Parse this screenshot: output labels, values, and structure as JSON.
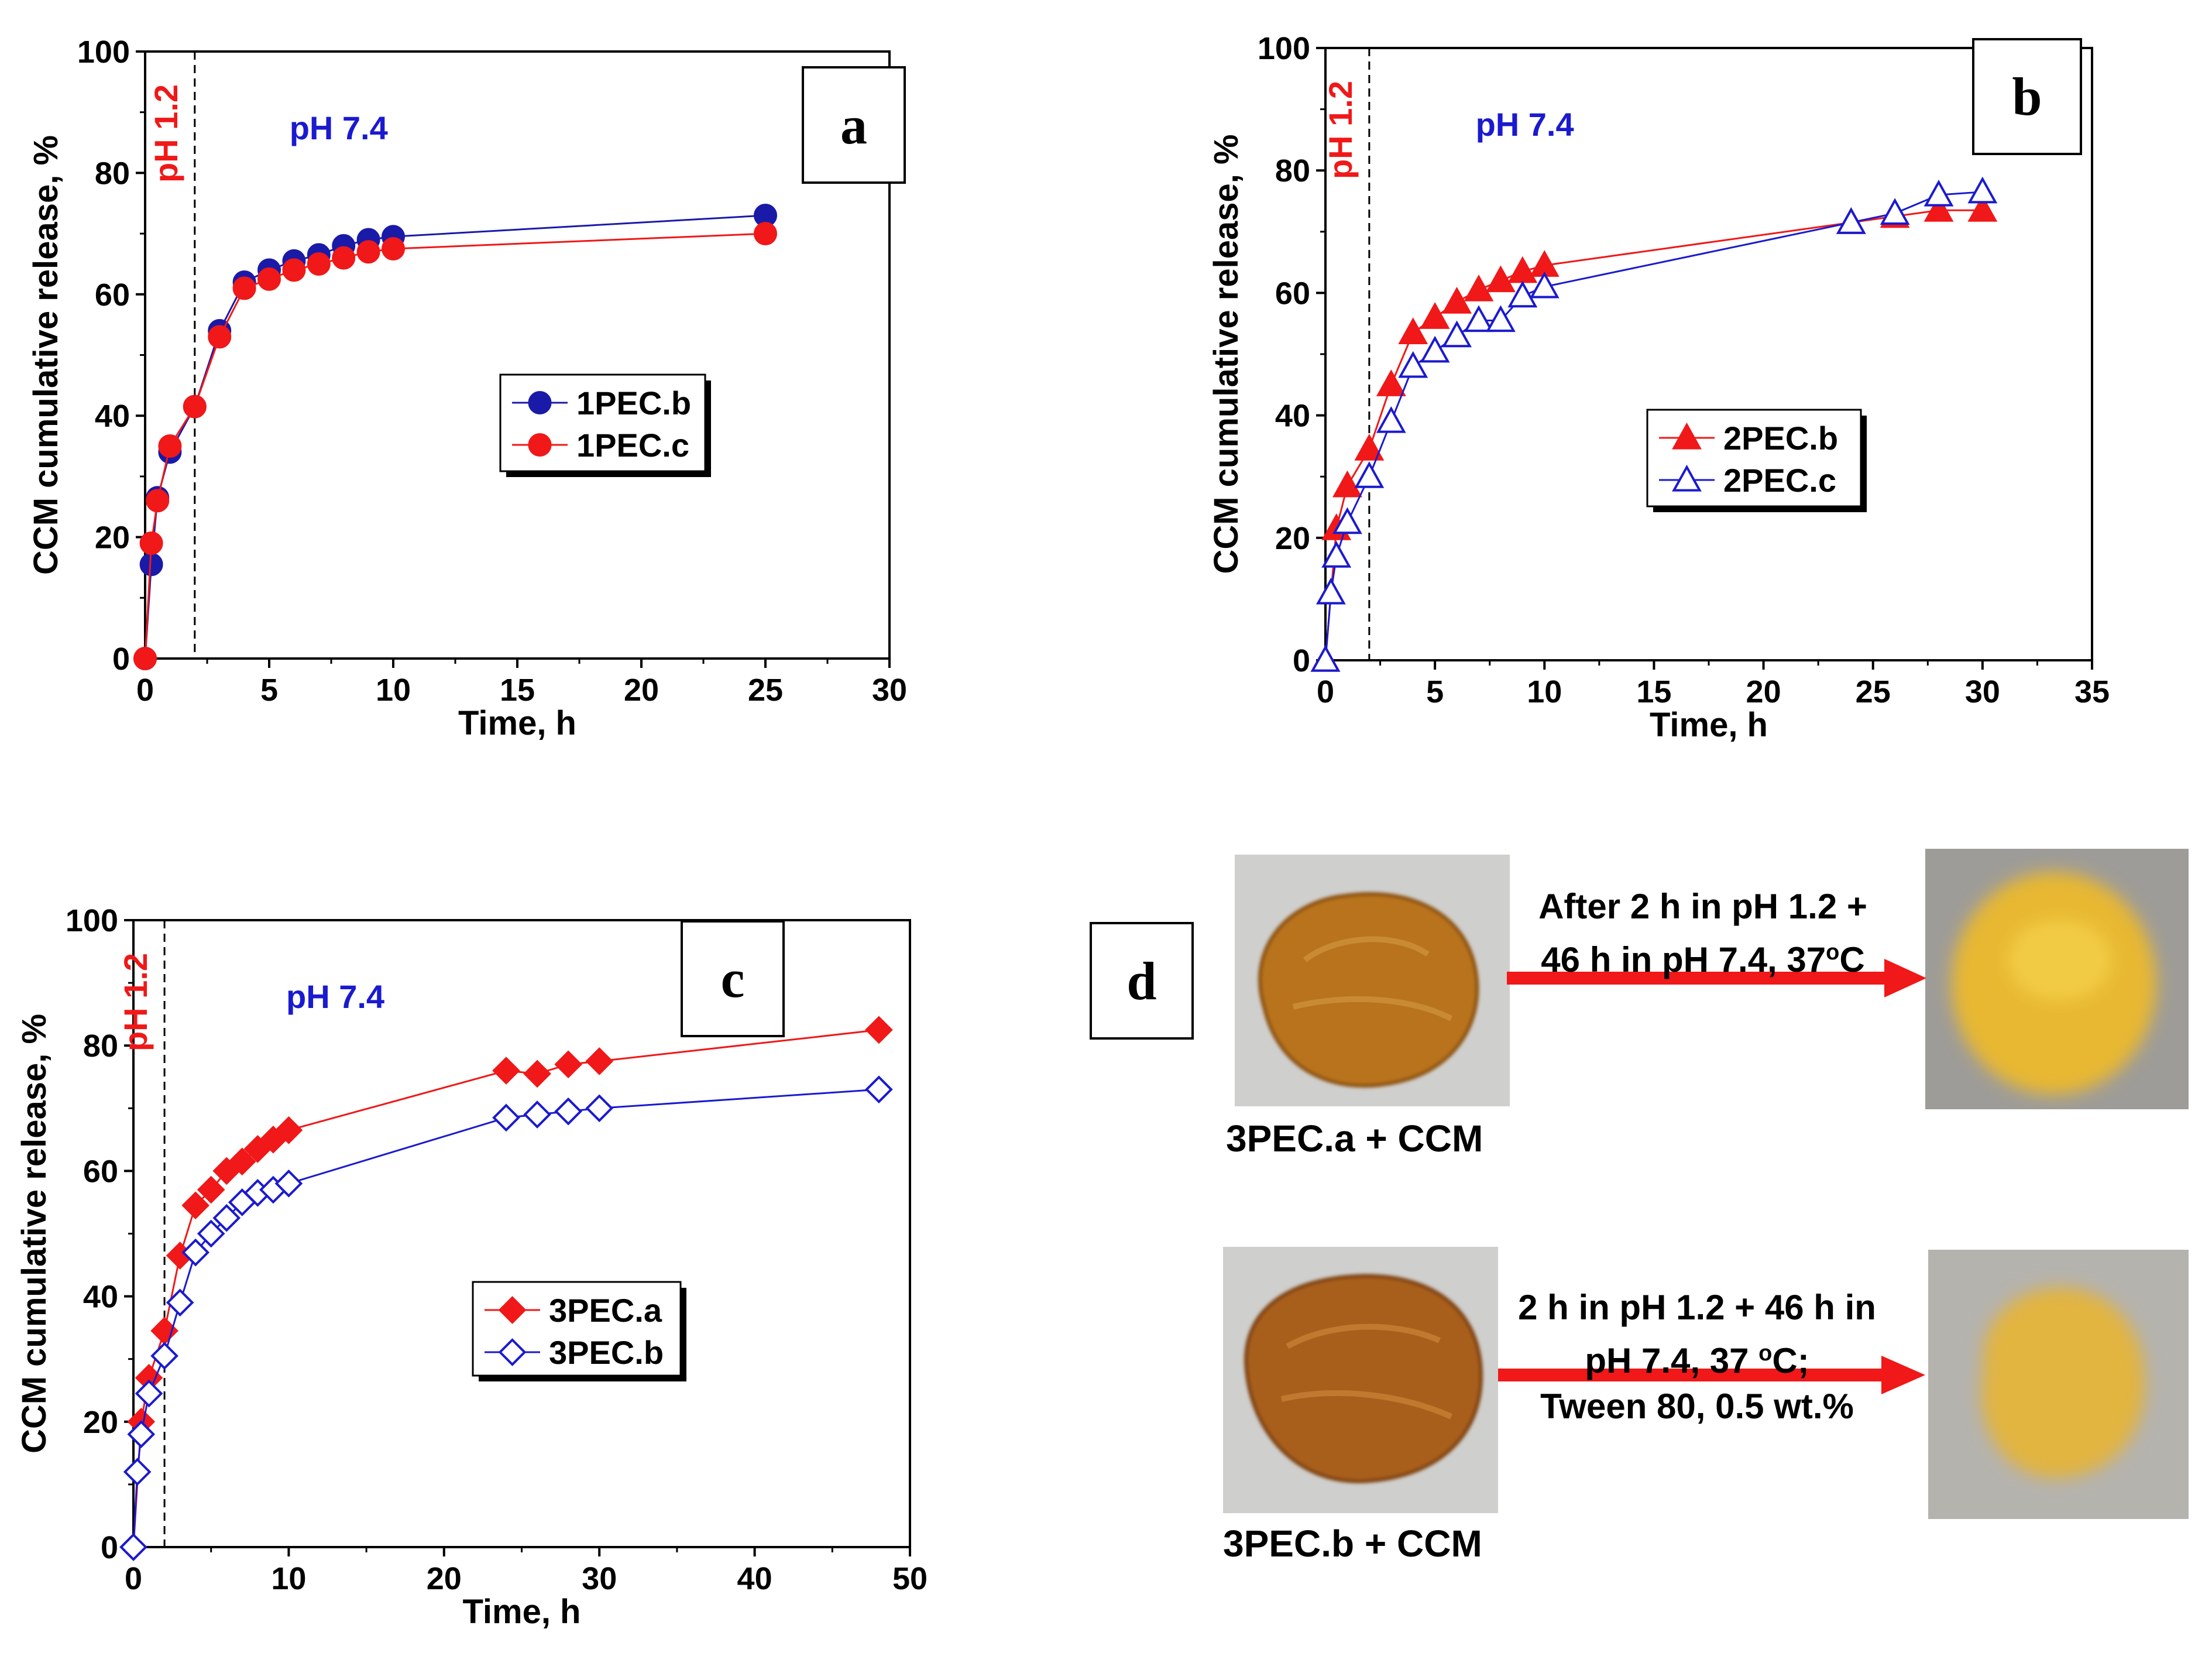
{
  "chart_data": [
    {
      "panel": "a",
      "type": "line",
      "xlabel": "Time, h",
      "ylabel": "CCM cumulative release, %",
      "xlim": [
        0,
        30
      ],
      "ylim": [
        0,
        100
      ],
      "xticks": [
        0,
        5,
        10,
        15,
        20,
        25,
        30
      ],
      "yticks": [
        0,
        20,
        40,
        60,
        80,
        100
      ],
      "xtick_labels": [
        "0",
        "5",
        "10",
        "15",
        "20",
        "25",
        "30"
      ],
      "ytick_labels": [
        "0",
        "20",
        "40",
        "60",
        "80",
        "100"
      ],
      "ph_acid_label": "pH 1.2",
      "ph_neutral_label": "pH 7.4",
      "ph_switch_x": 2,
      "legend_position": "center-right",
      "series": [
        {
          "name": "1PEC.b",
          "color": "#1a1aa8",
          "marker": "circle",
          "filled": true,
          "x": [
            0,
            0.25,
            0.5,
            1,
            2,
            3,
            4,
            5,
            6,
            7,
            8,
            9,
            10,
            25
          ],
          "y": [
            0,
            15.5,
            26.5,
            34,
            41.5,
            54,
            62,
            64,
            65.5,
            66.5,
            68,
            69,
            69.5,
            73
          ]
        },
        {
          "name": "1PEC.c",
          "color": "#f01818",
          "marker": "circle",
          "filled": true,
          "x": [
            0,
            0.25,
            0.5,
            1,
            2,
            3,
            4,
            5,
            6,
            7,
            8,
            9,
            10,
            25
          ],
          "y": [
            0,
            19,
            26,
            35,
            41.5,
            53,
            61,
            62.5,
            64,
            65,
            66,
            67,
            67.5,
            70
          ]
        }
      ]
    },
    {
      "panel": "b",
      "type": "line",
      "xlabel": "Time, h",
      "ylabel": "CCM cumulative release, %",
      "xlim": [
        0,
        35
      ],
      "ylim": [
        0,
        100
      ],
      "xticks": [
        0,
        5,
        10,
        15,
        20,
        25,
        30,
        35
      ],
      "yticks": [
        0,
        20,
        40,
        60,
        80,
        100
      ],
      "xtick_labels": [
        "0",
        "5",
        "10",
        "15",
        "20",
        "25",
        "30",
        "35"
      ],
      "ytick_labels": [
        "0",
        "20",
        "40",
        "60",
        "80",
        "100"
      ],
      "ph_acid_label": "pH 1.2",
      "ph_neutral_label": "pH 7.4",
      "ph_switch_x": 2,
      "legend_position": "center-right",
      "series": [
        {
          "name": "2PEC.b",
          "color": "#f01818",
          "marker": "triangle",
          "filled": true,
          "x": [
            0,
            0.5,
            1,
            2,
            3,
            4,
            5,
            6,
            7,
            8,
            9,
            10,
            24,
            26,
            28,
            30
          ],
          "y": [
            0,
            21.5,
            28.5,
            34.5,
            45,
            53.5,
            56,
            58.5,
            60.5,
            62,
            63.5,
            64.5,
            71.5,
            72.5,
            73.5,
            73.5
          ]
        },
        {
          "name": "2PEC.c",
          "color": "#1a1ad0",
          "marker": "triangle",
          "filled": false,
          "x": [
            0,
            0.25,
            0.5,
            1,
            2,
            3,
            4,
            5,
            6,
            7,
            8,
            9,
            10,
            24,
            26,
            28,
            30
          ],
          "y": [
            0,
            11,
            17,
            22.5,
            30,
            39,
            48,
            50.5,
            53,
            55.5,
            55.5,
            59.5,
            61,
            71.5,
            73,
            76,
            76.5
          ]
        }
      ]
    },
    {
      "panel": "c",
      "type": "line",
      "xlabel": "Time, h",
      "ylabel": "CCM cumulative release, %",
      "xlim": [
        0,
        50
      ],
      "ylim": [
        0,
        100
      ],
      "xticks": [
        0,
        10,
        20,
        30,
        40,
        50
      ],
      "yticks": [
        0,
        20,
        40,
        60,
        80,
        100
      ],
      "xtick_labels": [
        "0",
        "10",
        "20",
        "30",
        "40",
        "50"
      ],
      "ytick_labels": [
        "0",
        "20",
        "40",
        "60",
        "80",
        "100"
      ],
      "ph_acid_label": "pH 1.2",
      "ph_neutral_label": "pH 7.4",
      "ph_switch_x": 2,
      "legend_position": "center-right",
      "series": [
        {
          "name": "3PEC.a",
          "color": "#f01818",
          "marker": "diamond",
          "filled": true,
          "x": [
            0,
            0.5,
            1,
            2,
            3,
            4,
            5,
            6,
            7,
            8,
            9,
            10,
            24,
            26,
            28,
            30,
            48
          ],
          "y": [
            0,
            20,
            27,
            34.5,
            46.5,
            54.5,
            57,
            60,
            61.5,
            63.5,
            65,
            66.5,
            76,
            75.5,
            77,
            77.5,
            82.5
          ]
        },
        {
          "name": "3PEC.b",
          "color": "#1a1ad0",
          "marker": "diamond",
          "filled": false,
          "x": [
            0,
            0.25,
            0.5,
            1,
            2,
            3,
            4,
            5,
            6,
            7,
            8,
            9,
            10,
            24,
            26,
            28,
            30,
            48
          ],
          "y": [
            0,
            12,
            18,
            24.5,
            30.5,
            39,
            47,
            50,
            52.5,
            55,
            56.5,
            57,
            58,
            68.5,
            69,
            69.5,
            70,
            73
          ]
        }
      ]
    }
  ],
  "panel_tags": {
    "a": "a",
    "b": "b",
    "c": "c",
    "d": "d"
  },
  "panel_d": {
    "photo1_label": "3PEC.a  + CCM",
    "photo2_label": "3PEC.b + CCM",
    "arrow1_text_line1": "After 2 h in pH 1.2 +",
    "arrow1_text_line2": "46 h in pH 7.4, 37",
    "arrow1_text_sup": "o",
    "arrow1_text_end": "C",
    "arrow2_text_line1": "2 h in pH 1.2 + 46 h in",
    "arrow2_text_line2": "pH 7.4, 37 ",
    "arrow2_text_sup": "o",
    "arrow2_text_end": "C;",
    "arrow2_text_line3": "Tween 80, 0.5 wt.%",
    "arrow_color": "#f01818",
    "pellet_dry_color": "#b8731f",
    "pellet_swollen_color": "#e8b830"
  }
}
